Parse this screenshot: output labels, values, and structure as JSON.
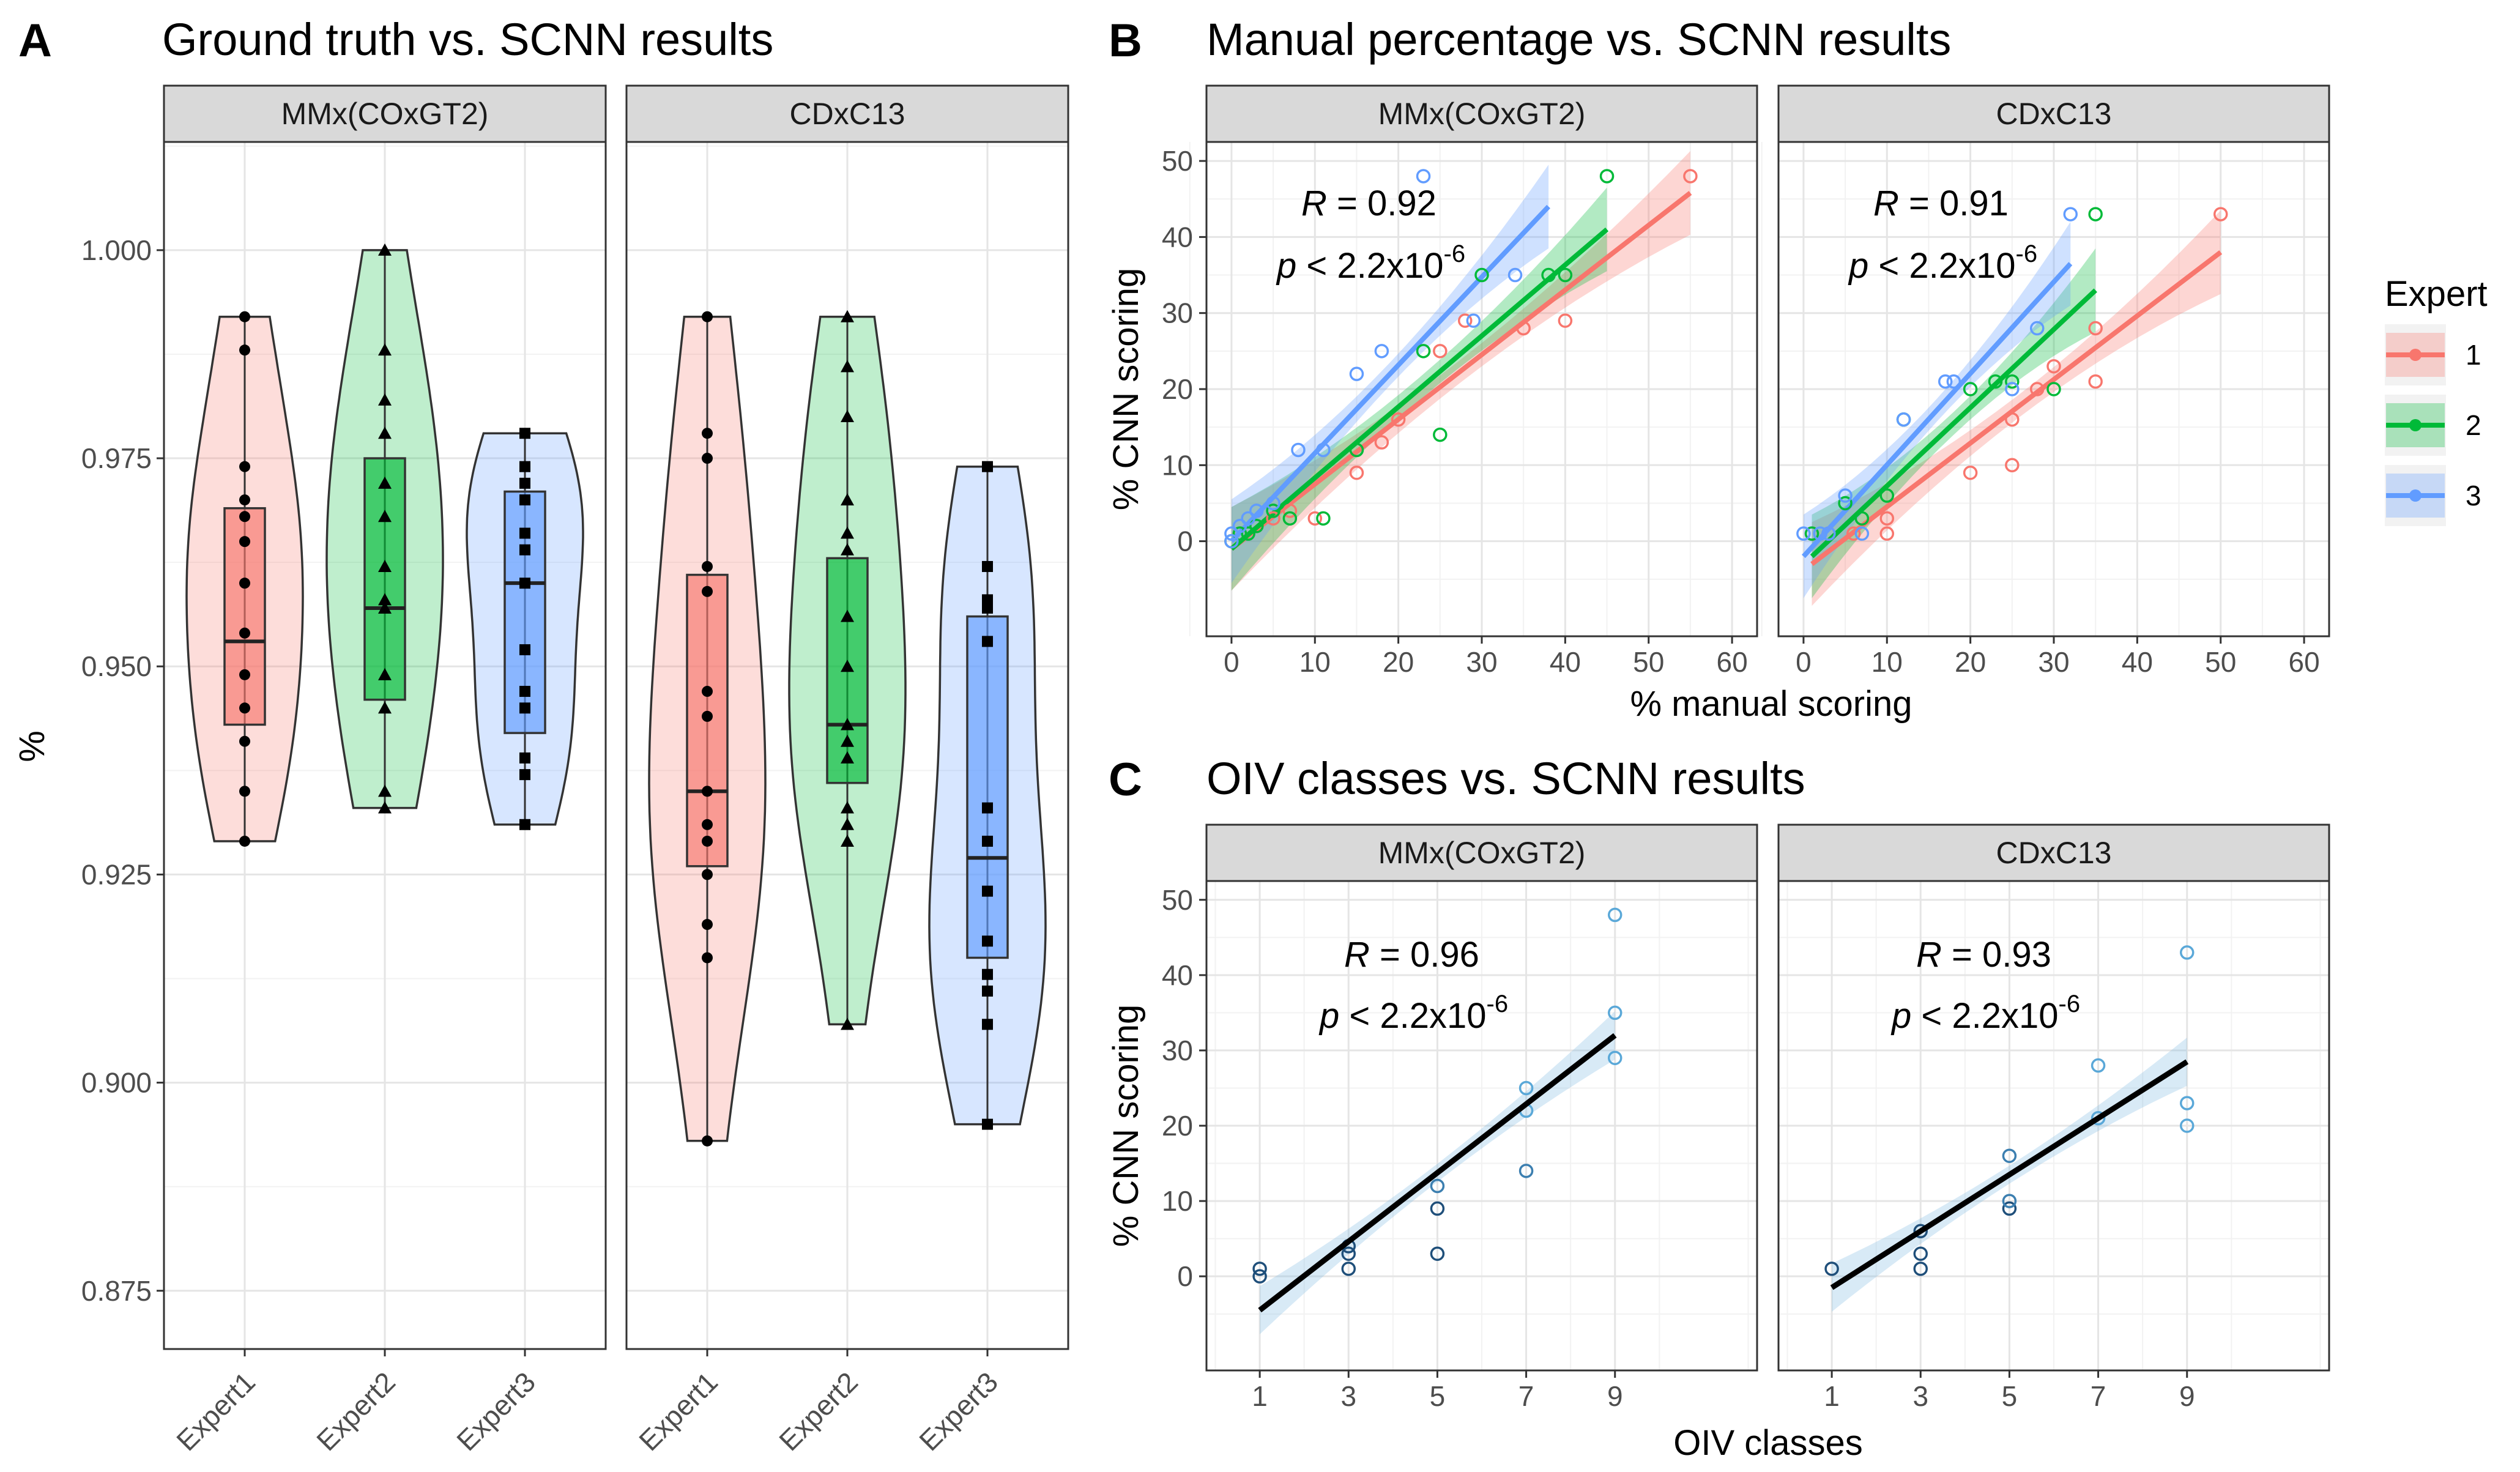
{
  "colors": {
    "expert1": "#F8766D",
    "expert2": "#00BA38",
    "expert3": "#619CFF",
    "oiv_points": "#4A90C8",
    "oiv_fit": "#000000"
  },
  "chart_data": [
    {
      "panel": "A",
      "type": "violin",
      "title": "Ground truth vs. SCNN results",
      "ylabel": "%",
      "xlabel": "",
      "ylim": [
        0.868,
        1.013
      ],
      "yticks": [
        "0.875",
        "0.900",
        "0.925",
        "0.950",
        "0.975",
        "1.000"
      ],
      "categories": [
        "Expert1",
        "Expert2",
        "Expert3"
      ],
      "facets": [
        {
          "name": "MMx(COxGT2)",
          "groups": [
            {
              "name": "Expert1",
              "min": 0.929,
              "q1": 0.943,
              "median": 0.953,
              "q3": 0.969,
              "max": 0.992,
              "points": [
                0.992,
                0.988,
                0.974,
                0.97,
                0.968,
                0.965,
                0.96,
                0.954,
                0.949,
                0.945,
                0.941,
                0.935,
                0.929
              ]
            },
            {
              "name": "Expert2",
              "min": 0.933,
              "q1": 0.946,
              "median": 0.957,
              "q3": 0.975,
              "max": 1.0,
              "points": [
                1.0,
                0.988,
                0.982,
                0.978,
                0.972,
                0.968,
                0.962,
                0.958,
                0.957,
                0.949,
                0.945,
                0.935,
                0.933
              ]
            },
            {
              "name": "Expert3",
              "min": 0.931,
              "q1": 0.942,
              "median": 0.96,
              "q3": 0.971,
              "max": 0.978,
              "points": [
                0.978,
                0.974,
                0.972,
                0.97,
                0.966,
                0.964,
                0.96,
                0.952,
                0.947,
                0.945,
                0.939,
                0.937,
                0.931
              ]
            }
          ]
        },
        {
          "name": "CDxC13",
          "groups": [
            {
              "name": "Expert1",
              "min": 0.893,
              "q1": 0.926,
              "median": 0.935,
              "q3": 0.961,
              "max": 0.992,
              "points": [
                0.992,
                0.978,
                0.975,
                0.962,
                0.959,
                0.947,
                0.944,
                0.935,
                0.931,
                0.929,
                0.925,
                0.919,
                0.915,
                0.893
              ]
            },
            {
              "name": "Expert2",
              "min": 0.907,
              "q1": 0.936,
              "median": 0.943,
              "q3": 0.963,
              "max": 0.992,
              "points": [
                0.992,
                0.986,
                0.98,
                0.97,
                0.966,
                0.964,
                0.956,
                0.95,
                0.943,
                0.941,
                0.939,
                0.933,
                0.931,
                0.929,
                0.907
              ]
            },
            {
              "name": "Expert3",
              "min": 0.895,
              "q1": 0.915,
              "median": 0.927,
              "q3": 0.956,
              "max": 0.974,
              "points": [
                0.974,
                0.962,
                0.958,
                0.957,
                0.953,
                0.933,
                0.929,
                0.923,
                0.917,
                0.913,
                0.911,
                0.907,
                0.895
              ]
            }
          ]
        }
      ]
    },
    {
      "panel": "B",
      "type": "scatter",
      "title": "Manual percentage vs. SCNN results",
      "xlabel": "% manual scoring",
      "ylabel": "% CNN scoring",
      "xlim": [
        -3,
        63
      ],
      "ylim": [
        -12.5,
        52.5
      ],
      "xticks": [
        "0",
        "10",
        "20",
        "30",
        "40",
        "50",
        "60"
      ],
      "yticks": [
        "0",
        "10",
        "20",
        "30",
        "40",
        "50"
      ],
      "legend": {
        "title": "Expert",
        "position": "right",
        "entries": [
          "1",
          "2",
          "3"
        ]
      },
      "facets": [
        {
          "name": "MMx(COxGT2)",
          "stat_r": "= 0.92",
          "stat_p_base": "< 2.2x10",
          "stat_p_exp": "-6",
          "series": [
            {
              "name": "1",
              "points": [
                [
                  0,
                  0
                ],
                [
                  1,
                  1
                ],
                [
                  3,
                  2
                ],
                [
                  5,
                  3
                ],
                [
                  7,
                  4
                ],
                [
                  10,
                  3
                ],
                [
                  15,
                  9
                ],
                [
                  18,
                  13
                ],
                [
                  20,
                  16
                ],
                [
                  25,
                  25
                ],
                [
                  28,
                  29
                ],
                [
                  35,
                  28
                ],
                [
                  40,
                  29
                ],
                [
                  55,
                  48
                ]
              ],
              "fit": {
                "x": [
                  0,
                  55
                ],
                "y": [
                  -1,
                  45.8
                ]
              }
            },
            {
              "name": "2",
              "points": [
                [
                  0,
                  0
                ],
                [
                  1,
                  1
                ],
                [
                  2,
                  1
                ],
                [
                  3,
                  2
                ],
                [
                  5,
                  4
                ],
                [
                  7,
                  3
                ],
                [
                  11,
                  3
                ],
                [
                  15,
                  12
                ],
                [
                  23,
                  25
                ],
                [
                  25,
                  14
                ],
                [
                  30,
                  35
                ],
                [
                  38,
                  35
                ],
                [
                  40,
                  35
                ],
                [
                  45,
                  48
                ]
              ],
              "fit": {
                "x": [
                  0,
                  45
                ],
                "y": [
                  -1,
                  41
                ]
              }
            },
            {
              "name": "3",
              "points": [
                [
                  0,
                  0
                ],
                [
                  0,
                  1
                ],
                [
                  1,
                  2
                ],
                [
                  2,
                  3
                ],
                [
                  3,
                  4
                ],
                [
                  5,
                  5
                ],
                [
                  8,
                  12
                ],
                [
                  11,
                  12
                ],
                [
                  15,
                  22
                ],
                [
                  18,
                  25
                ],
                [
                  23,
                  48
                ],
                [
                  29,
                  29
                ],
                [
                  34,
                  35
                ]
              ],
              "fit": {
                "x": [
                  0,
                  38
                ],
                "y": [
                  0,
                  44
                ]
              }
            }
          ]
        },
        {
          "name": "CDxC13",
          "stat_r": "= 0.91",
          "stat_p_base": "< 2.2x10",
          "stat_p_exp": "-6",
          "series": [
            {
              "name": "1",
              "points": [
                [
                  1,
                  1
                ],
                [
                  3,
                  1
                ],
                [
                  6,
                  1
                ],
                [
                  10,
                  1
                ],
                [
                  10,
                  3
                ],
                [
                  20,
                  9
                ],
                [
                  25,
                  10
                ],
                [
                  25,
                  16
                ],
                [
                  28,
                  20
                ],
                [
                  30,
                  23
                ],
                [
                  35,
                  21
                ],
                [
                  35,
                  28
                ],
                [
                  50,
                  43
                ]
              ],
              "fit": {
                "x": [
                  1,
                  50
                ],
                "y": [
                  -3,
                  38
                ]
              }
            },
            {
              "name": "2",
              "points": [
                [
                  1,
                  1
                ],
                [
                  5,
                  5
                ],
                [
                  7,
                  3
                ],
                [
                  10,
                  6
                ],
                [
                  12,
                  16
                ],
                [
                  20,
                  20
                ],
                [
                  23,
                  21
                ],
                [
                  25,
                  21
                ],
                [
                  30,
                  20
                ],
                [
                  35,
                  43
                ]
              ],
              "fit": {
                "x": [
                  1,
                  35
                ],
                "y": [
                  -2,
                  33
                ]
              }
            },
            {
              "name": "3",
              "points": [
                [
                  0,
                  1
                ],
                [
                  2,
                  1
                ],
                [
                  3,
                  1
                ],
                [
                  5,
                  6
                ],
                [
                  7,
                  1
                ],
                [
                  12,
                  16
                ],
                [
                  17,
                  21
                ],
                [
                  18,
                  21
                ],
                [
                  25,
                  20
                ],
                [
                  28,
                  28
                ],
                [
                  32,
                  43
                ]
              ],
              "fit": {
                "x": [
                  0,
                  32
                ],
                "y": [
                  -2,
                  36.5
                ]
              }
            }
          ]
        }
      ]
    },
    {
      "panel": "C",
      "type": "scatter",
      "title": "OIV classes vs. SCNN results",
      "xlabel": "OIV classes",
      "ylabel": "% CNN scoring",
      "xlim": [
        -0.2,
        12.2
      ],
      "ylim": [
        -12.5,
        52.5
      ],
      "xticks": [
        "1",
        "3",
        "5",
        "7",
        "9"
      ],
      "yticks": [
        "0",
        "10",
        "20",
        "30",
        "40",
        "50"
      ],
      "facets": [
        {
          "name": "MMx(COxGT2)",
          "stat_r": "= 0.96",
          "stat_p_base": "< 2.2x10",
          "stat_p_exp": "-6",
          "points": [
            [
              1,
              0
            ],
            [
              1,
              1
            ],
            [
              3,
              1
            ],
            [
              3,
              3
            ],
            [
              3,
              4
            ],
            [
              5,
              3
            ],
            [
              5,
              9
            ],
            [
              5,
              12
            ],
            [
              7,
              14
            ],
            [
              7,
              22
            ],
            [
              7,
              25
            ],
            [
              9,
              29
            ],
            [
              9,
              35
            ],
            [
              9,
              48
            ]
          ],
          "fit": {
            "x": [
              1,
              9
            ],
            "y": [
              -4.5,
              32
            ]
          }
        },
        {
          "name": "CDxC13",
          "stat_r": "= 0.93",
          "stat_p_base": "< 2.2x10",
          "stat_p_exp": "-6",
          "points": [
            [
              1,
              1
            ],
            [
              3,
              1
            ],
            [
              3,
              3
            ],
            [
              3,
              6
            ],
            [
              5,
              9
            ],
            [
              5,
              10
            ],
            [
              5,
              16
            ],
            [
              7,
              21
            ],
            [
              7,
              28
            ],
            [
              9,
              20
            ],
            [
              9,
              23
            ],
            [
              9,
              43
            ]
          ],
          "fit": {
            "x": [
              1,
              9
            ],
            "y": [
              -1.5,
              28.5
            ]
          }
        }
      ]
    }
  ]
}
